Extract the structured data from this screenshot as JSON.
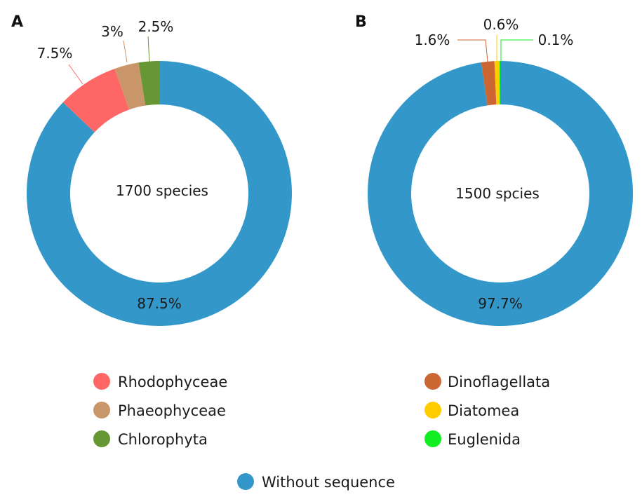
{
  "chart_data": [
    {
      "type": "pie",
      "panel": "A",
      "center_text": "1700 species",
      "categories": [
        "Without sequence",
        "Rhodophyceae",
        "Phaeophyceae",
        "Chlorophyta"
      ],
      "values": [
        87.5,
        7.5,
        3,
        2.5
      ],
      "labels": [
        "87.5%",
        "7.5%",
        "3%",
        "2.5%"
      ],
      "colors": [
        "#3398c9",
        "#ff6666",
        "#c9966a",
        "#679634"
      ],
      "donut": true
    },
    {
      "type": "pie",
      "panel": "B",
      "center_text": "1500 spcies",
      "categories": [
        "Without sequence",
        "Dinoflagellata",
        "Diatomea",
        "Euglenida"
      ],
      "values": [
        97.7,
        1.6,
        0.6,
        0.1
      ],
      "labels": [
        "97.7%",
        "1.6%",
        "0.6%",
        "0.1%"
      ],
      "colors": [
        "#3398c9",
        "#cc6633",
        "#ffcc00",
        "#11ee22"
      ],
      "donut": true
    }
  ],
  "legend": {
    "left": [
      {
        "label": "Rhodophyceae",
        "color": "#ff6666"
      },
      {
        "label": "Phaeophyceae",
        "color": "#c9966a"
      },
      {
        "label": "Chlorophyta",
        "color": "#679634"
      }
    ],
    "right": [
      {
        "label": "Dinoflagellata",
        "color": "#cc6633"
      },
      {
        "label": "Diatomea",
        "color": "#ffcc00"
      },
      {
        "label": "Euglenida",
        "color": "#11ee22"
      }
    ],
    "bottom": {
      "label": "Without sequence",
      "color": "#3398c9"
    }
  }
}
